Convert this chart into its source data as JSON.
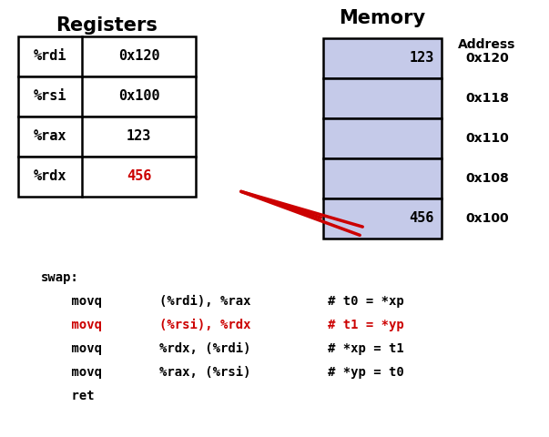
{
  "bg_color": "#ffffff",
  "title_registers": "Registers",
  "title_memory": "Memory",
  "title_address": "Address",
  "reg_rows": [
    {
      "name": "%rdi",
      "value": "0x120",
      "highlight": false
    },
    {
      "name": "%rsi",
      "value": "0x100",
      "highlight": false
    },
    {
      "name": "%rax",
      "value": "123",
      "highlight": false
    },
    {
      "name": "%rdx",
      "value": "456",
      "highlight": true
    }
  ],
  "mem_rows": [
    {
      "value": "123",
      "address": "0x120"
    },
    {
      "value": "",
      "address": "0x118"
    },
    {
      "value": "",
      "address": "0x110"
    },
    {
      "value": "",
      "address": "0x108"
    },
    {
      "value": "456",
      "address": "0x100"
    }
  ],
  "mem_fill": "#c5cae9",
  "mem_edge": "#000000",
  "reg_fill": "#ffffff",
  "reg_edge": "#000000",
  "highlight_color": "#cc0000",
  "arrow_color": "#cc0000",
  "code_lines": [
    {
      "col1": "swap:",
      "col2": "",
      "col3": "",
      "color": "#000000"
    },
    {
      "col1": "    movq",
      "col2": "(%rdi), %rax",
      "col3": "# t0 = *xp",
      "color": "#000000"
    },
    {
      "col1": "    movq",
      "col2": "(%rsi), %rdx",
      "col3": "# t1 = *yp",
      "color": "#cc0000"
    },
    {
      "col1": "    movq",
      "col2": "%rdx, (%rdi)",
      "col3": "# *xp = t1",
      "color": "#000000"
    },
    {
      "col1": "    movq",
      "col2": "%rax, (%rsi)",
      "col3": "# *yp = t0",
      "color": "#000000"
    },
    {
      "col1": "    ret",
      "col2": "",
      "col3": "",
      "color": "#000000"
    }
  ],
  "font_bold": "DejaVu Sans",
  "code_font": "DejaVu Sans Mono"
}
